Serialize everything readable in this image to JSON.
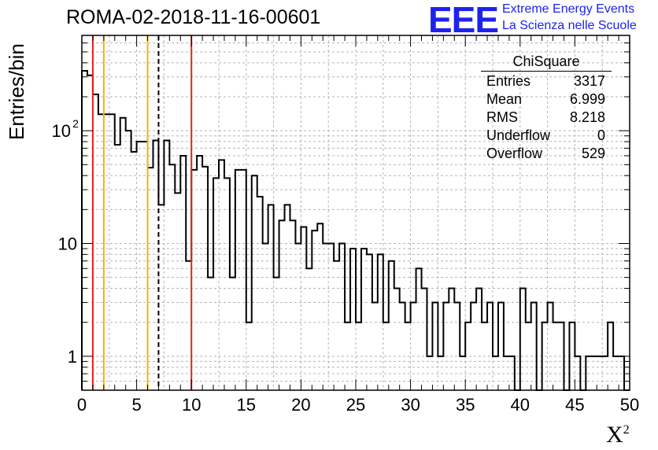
{
  "header": {
    "title": "ROMA-02-2018-11-16-00601"
  },
  "logo": {
    "mark": "EEE",
    "line1": "Extreme Energy Events",
    "line2": "La Scienza nelle Scuole",
    "color": "#1e22ee"
  },
  "stats": {
    "title": "ChiSquare",
    "rows": [
      {
        "label": "Entries",
        "value": "3317"
      },
      {
        "label": "Mean",
        "value": "6.999"
      },
      {
        "label": "RMS",
        "value": "8.218"
      },
      {
        "label": "Underflow",
        "value": "0"
      },
      {
        "label": "Overflow",
        "value": "529"
      }
    ]
  },
  "chart_data": {
    "type": "histogram",
    "title": "ROMA-02-2018-11-16-00601",
    "xlabel": "X²",
    "ylabel": "Entries/bin",
    "xlim": [
      0,
      50
    ],
    "ylim": [
      0.5,
      700
    ],
    "y_scale": "log",
    "grid": true,
    "bin_width": 0.5,
    "x_ticks": [
      "0",
      "5",
      "10",
      "15",
      "20",
      "25",
      "30",
      "35",
      "40",
      "45",
      "50"
    ],
    "y_ticks": [
      {
        "value": 1,
        "label": "1"
      },
      {
        "value": 10,
        "label": "10"
      },
      {
        "value": 100,
        "label": "10",
        "exponent": "2"
      }
    ],
    "values": [
      340,
      310,
      210,
      140,
      140,
      140,
      75,
      130,
      100,
      65,
      80,
      80,
      47,
      82,
      22,
      82,
      50,
      28,
      60,
      7,
      45,
      60,
      48,
      5,
      38,
      55,
      38,
      5,
      45,
      45,
      2,
      40,
      26,
      10,
      22,
      5,
      16,
      22,
      16,
      10,
      14,
      6,
      13,
      15,
      10,
      10,
      7,
      10,
      2,
      9,
      2,
      9,
      8,
      3,
      8,
      2,
      7,
      4,
      3,
      2,
      3,
      6,
      4,
      1,
      3,
      1,
      3,
      4,
      3,
      1,
      2,
      3,
      4,
      2,
      3,
      1,
      3,
      1,
      1,
      0,
      4,
      2,
      3,
      0,
      2,
      3,
      2,
      2,
      0.5,
      2,
      1,
      0.5,
      1,
      1,
      1,
      1,
      2,
      1,
      1,
      0.5
    ],
    "vertical_lines": [
      {
        "x": 1,
        "color": "#e8201c",
        "style": "solid"
      },
      {
        "x": 2,
        "color": "#f5b400",
        "style": "solid"
      },
      {
        "x": 6,
        "color": "#f5b400",
        "style": "solid"
      },
      {
        "x": 7,
        "color": "#000000",
        "style": "dashed"
      },
      {
        "x": 10,
        "color": "#e8201c",
        "style": "solid"
      }
    ],
    "stats_box": {
      "title": "ChiSquare",
      "entries": 3317,
      "mean": 6.999,
      "rms": 8.218,
      "underflow": 0,
      "overflow": 529
    }
  }
}
